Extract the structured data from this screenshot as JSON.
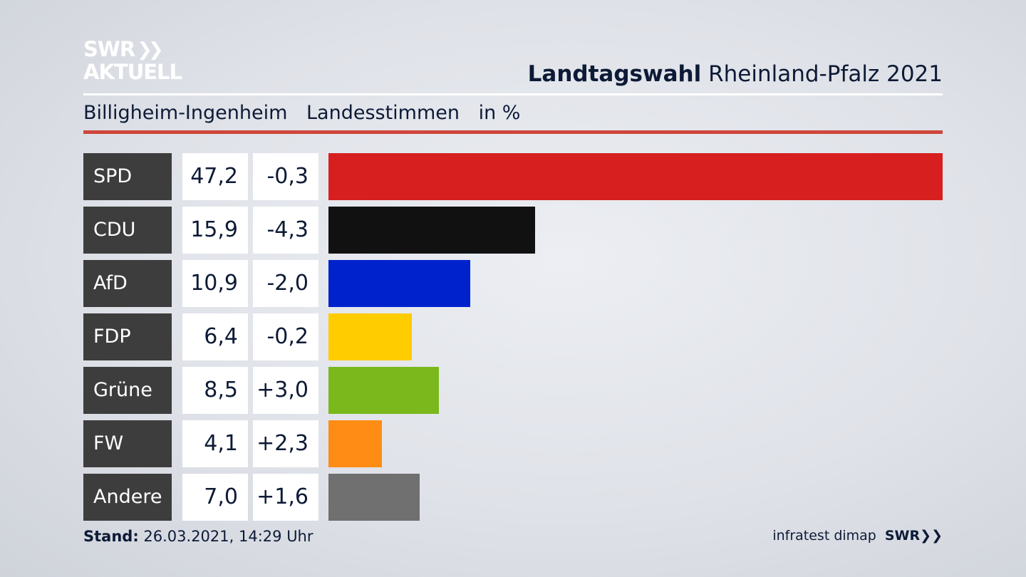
{
  "logo": {
    "line1": "SWR",
    "line2": "AKTUELL"
  },
  "header": {
    "title_bold": "Landtagswahl",
    "title_rest": "Rheinland-Pfalz 2021"
  },
  "subtitle": {
    "place": "Billigheim-Ingenheim",
    "type": "Landesstimmen",
    "unit": "in %"
  },
  "chart_data": {
    "type": "bar",
    "categories": [
      "SPD",
      "CDU",
      "AfD",
      "FDP",
      "Grüne",
      "FW",
      "Andere"
    ],
    "values": [
      47.2,
      15.9,
      10.9,
      6.4,
      8.5,
      4.1,
      7.0
    ],
    "value_labels": [
      "47,2",
      "15,9",
      "10,9",
      "6,4",
      "8,5",
      "4,1",
      "7,0"
    ],
    "diff_labels": [
      "-0,3",
      "-4,3",
      "-2,0",
      "-0,2",
      "+3,0",
      "+2,3",
      "+1,6"
    ],
    "diffs": [
      -0.3,
      -4.3,
      -2.0,
      -0.2,
      3.0,
      2.3,
      1.6
    ],
    "colors": [
      "#d71f1f",
      "#111111",
      "#0022cc",
      "#ffcc00",
      "#7ab81c",
      "#ff8c14",
      "#707070"
    ],
    "title": "Landtagswahl Rheinland-Pfalz 2021",
    "xlabel": "",
    "ylabel": "in %"
  },
  "footer": {
    "stand_label": "Stand:",
    "stand_value": "26.03.2021, 14:29 Uhr",
    "source": "infratest dimap",
    "brand": "SWR"
  }
}
